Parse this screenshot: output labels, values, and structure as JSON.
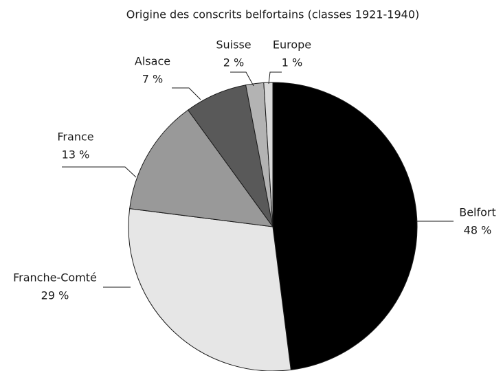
{
  "chart_data": {
    "type": "pie",
    "title": "Origine des conscrits belfortains (classes 1921-1940)",
    "categories": [
      "Belfort",
      "Franche-Comté",
      "France",
      "Alsace",
      "Suisse",
      "Europe"
    ],
    "values": [
      48,
      29,
      13,
      7,
      2,
      1
    ],
    "value_labels": [
      "48 %",
      "29 %",
      "13 %",
      "7 %",
      "2 %",
      "1 %"
    ],
    "colors": [
      "#000000",
      "#e6e6e6",
      "#999999",
      "#595959",
      "#b3b3b3",
      "#d9d9d9"
    ]
  }
}
